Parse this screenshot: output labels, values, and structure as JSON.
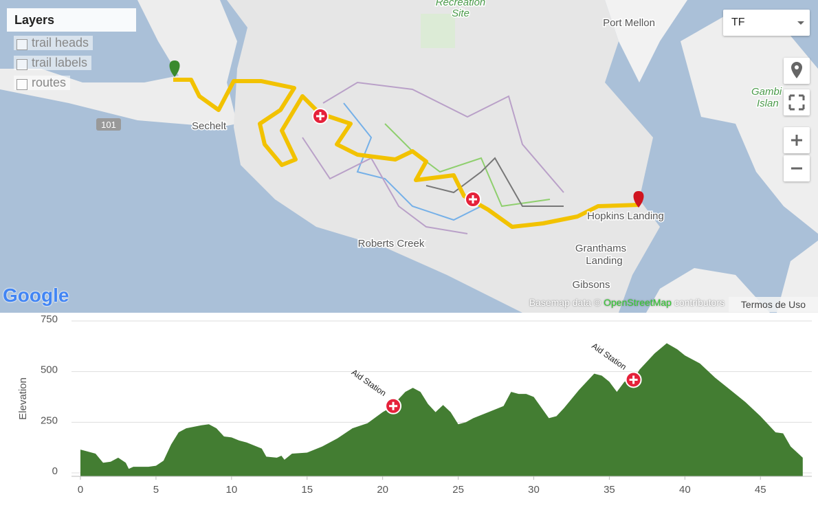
{
  "map": {
    "layers_title": "Layers",
    "layers": [
      "trail heads",
      "trail labels",
      "routes"
    ],
    "select": "TF",
    "places": {
      "recreation": "Recreation",
      "site": "Site",
      "port_mellon": "Port Mellon",
      "gambier": "Gambi",
      "island": "Islan",
      "sechelt": "Sechelt",
      "highway": "101",
      "hopkins": "Hopkins Landing",
      "roberts_creek": "Roberts Creek",
      "granthams": "Granthams",
      "landing": "Landing",
      "gibsons": "Gibsons"
    },
    "logo": "Google",
    "attribution": {
      "prefix": "Basemap data ©",
      "link": "OpenStreetMap",
      "suffix": "contributors"
    },
    "terms": "Termos de Uso"
  },
  "chart_data": {
    "type": "area",
    "y_label": "Elevation",
    "color": "#437d32",
    "x": [
      0,
      1,
      1.5,
      2,
      2.5,
      3,
      3.2,
      3.5,
      4.5,
      5,
      5.5,
      6,
      6.5,
      7,
      8,
      8.5,
      9,
      9.5,
      10,
      10.5,
      11,
      12,
      12.3,
      13,
      13.3,
      13.5,
      14,
      15,
      16,
      17,
      18,
      19,
      20,
      20.7,
      21,
      21.5,
      22,
      22.5,
      23,
      23.5,
      24,
      24.5,
      25,
      25.5,
      26,
      27,
      28,
      28.5,
      29,
      29.5,
      30,
      31,
      31.5,
      32,
      33,
      34,
      34.5,
      35,
      35.5,
      36,
      36.6,
      37,
      38,
      38.8,
      39.5,
      40,
      41,
      42,
      43,
      44,
      45,
      46,
      46.5,
      47,
      47.8
    ],
    "values": [
      115,
      95,
      50,
      55,
      75,
      50,
      20,
      30,
      30,
      35,
      60,
      140,
      200,
      220,
      235,
      240,
      220,
      180,
      175,
      160,
      150,
      120,
      80,
      75,
      85,
      65,
      95,
      100,
      130,
      170,
      220,
      245,
      300,
      330,
      360,
      400,
      420,
      400,
      340,
      300,
      335,
      300,
      240,
      250,
      270,
      300,
      330,
      400,
      390,
      390,
      375,
      270,
      280,
      320,
      410,
      490,
      480,
      450,
      400,
      450,
      460,
      510,
      590,
      640,
      610,
      580,
      540,
      470,
      410,
      350,
      280,
      200,
      195,
      130,
      75
    ],
    "xlim": [
      0,
      48.4
    ],
    "ylim": [
      -17,
      750
    ],
    "xticks": [
      0,
      5,
      10,
      15,
      20,
      25,
      30,
      35,
      40,
      45
    ],
    "yticks": [
      0,
      250,
      500,
      750
    ],
    "grid": true,
    "annotations": [
      {
        "text": "Aid Station",
        "x": 20.7,
        "y": 330
      },
      {
        "text": "Aid Station",
        "x": 36.6,
        "y": 460
      }
    ]
  }
}
